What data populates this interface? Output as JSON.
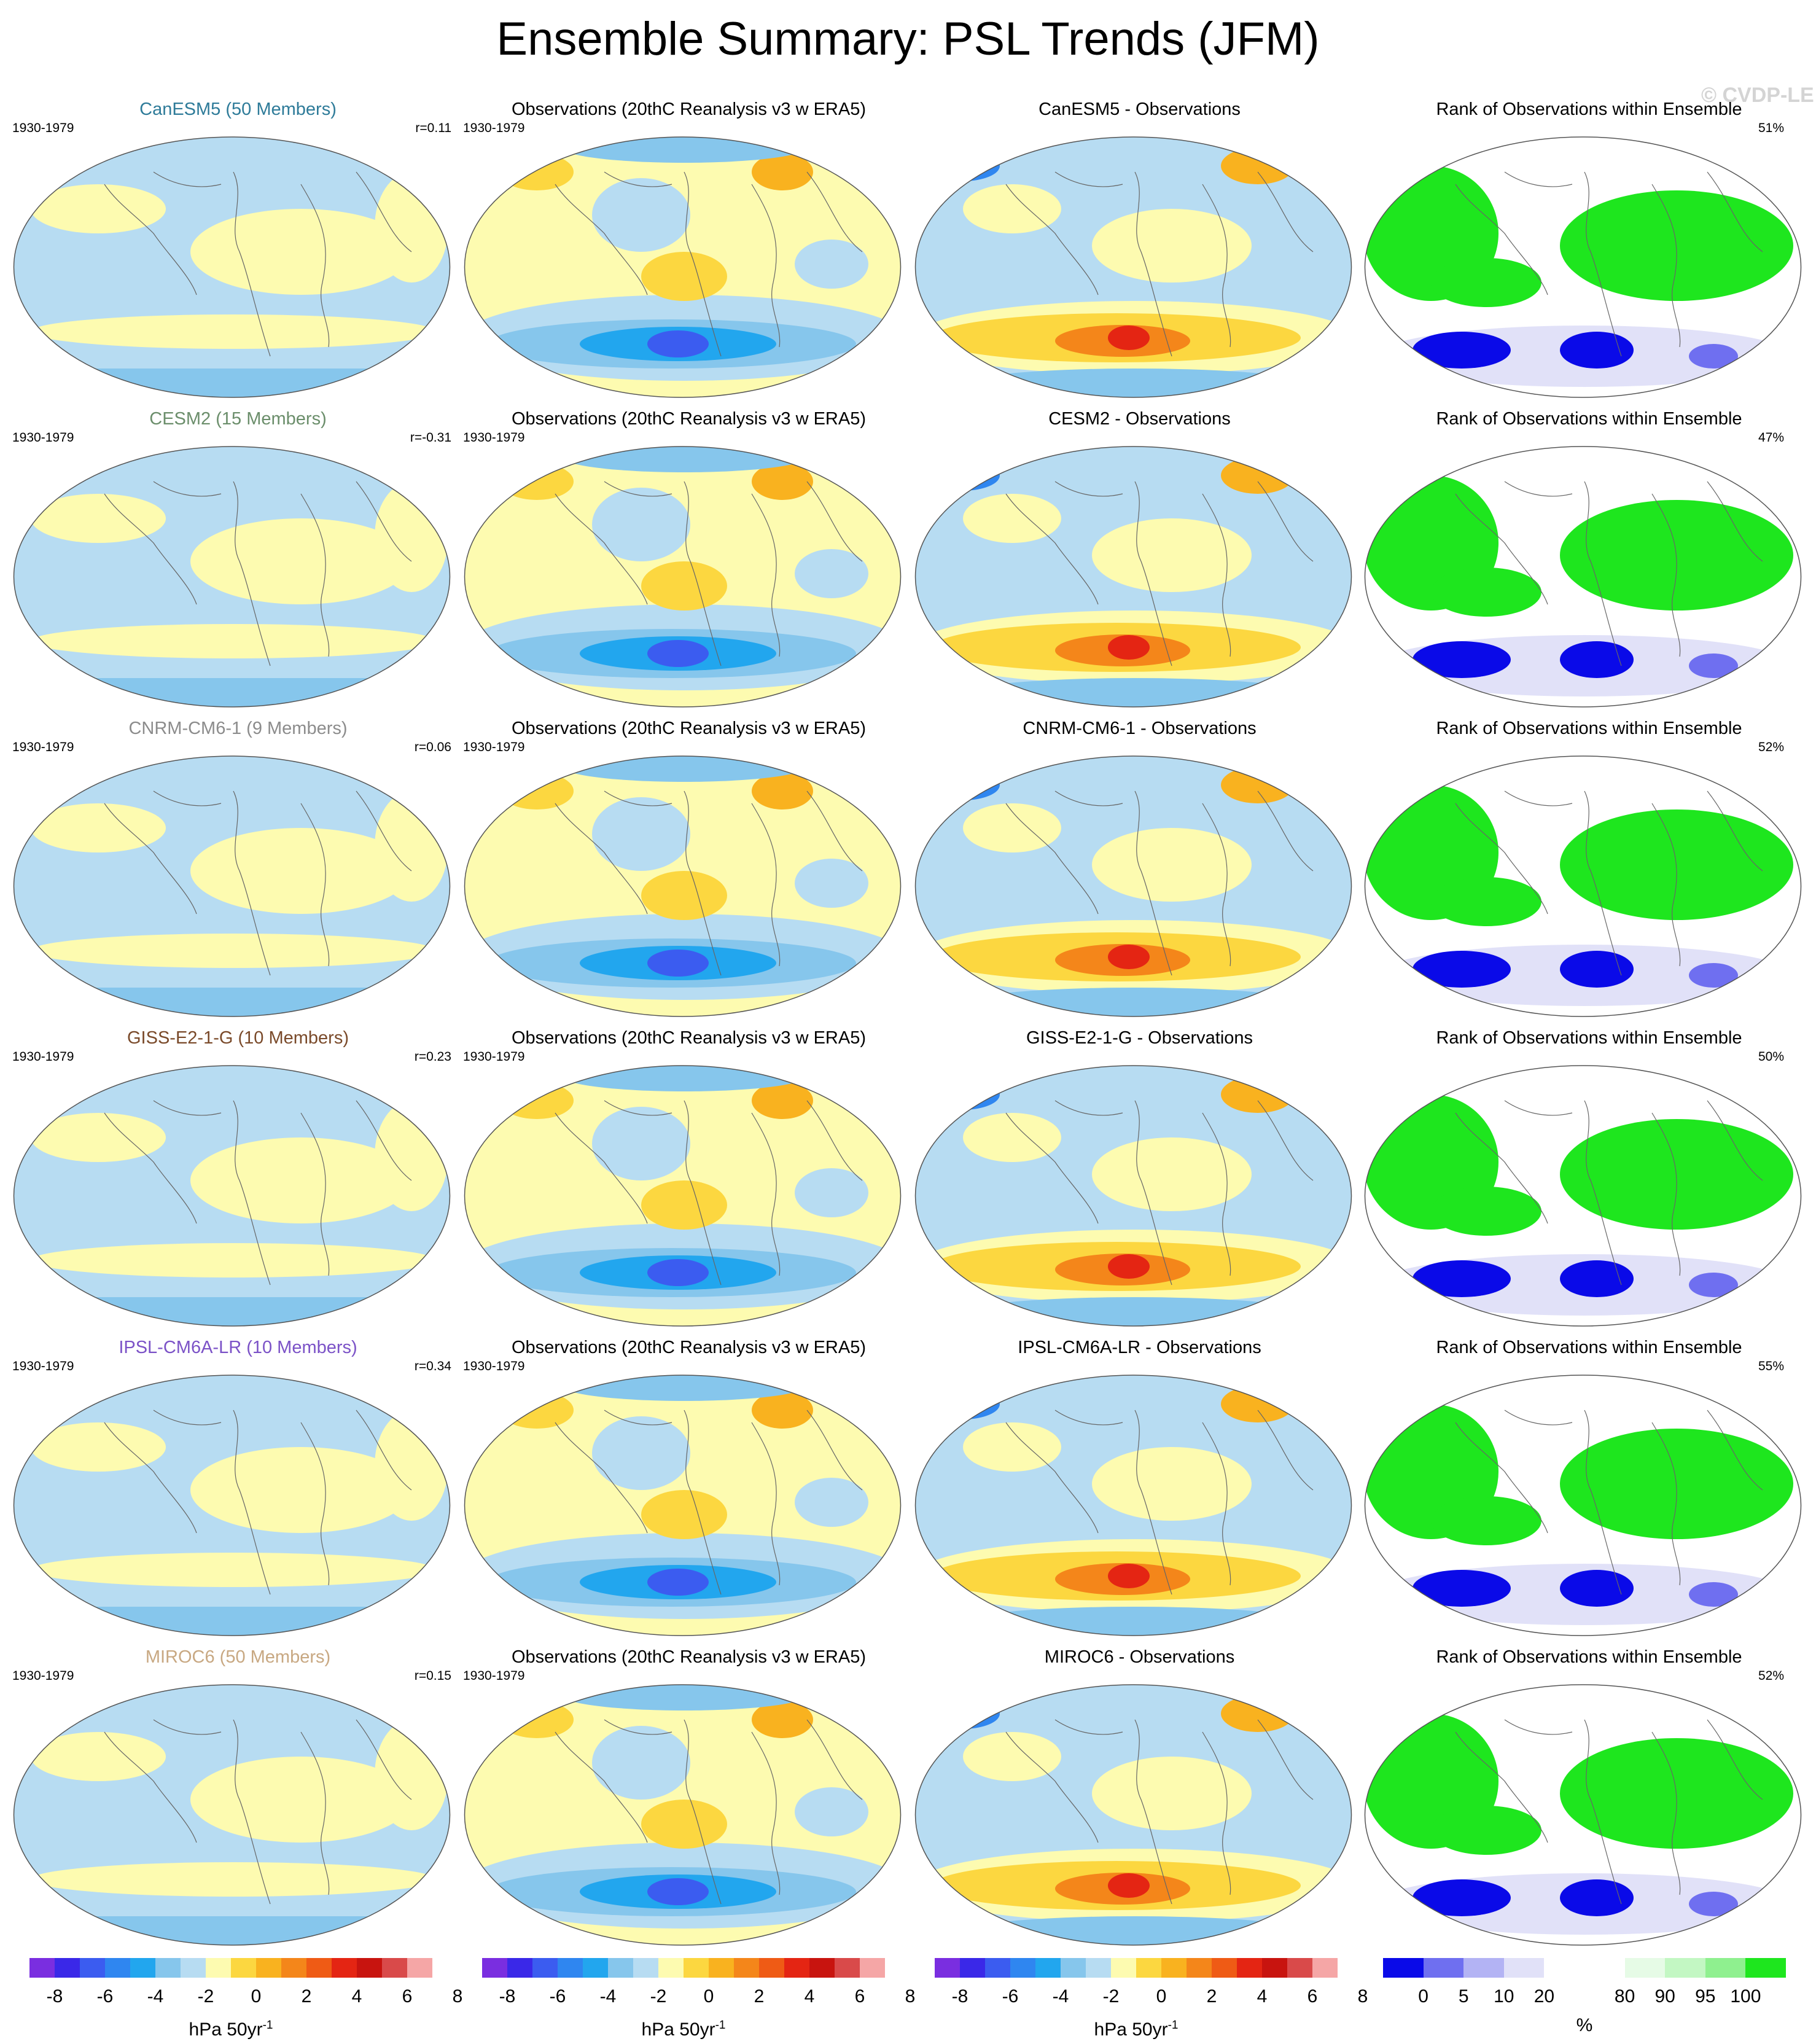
{
  "title": "Ensemble Summary: PSL Trends (JFM)",
  "watermark": "© CVDP-LE",
  "period": "1930-1979",
  "obs_title": "Observations (20thC Reanalysis v3 w ERA5)",
  "rank_title": "Rank of Observations within Ensemble",
  "rows": [
    {
      "model_title": "CanESM5 (50 Members)",
      "model_color": "#2e7b99",
      "r": "r=0.11",
      "diff_title": "CanESM5 - Observations",
      "rank_pct": "51%"
    },
    {
      "model_title": "CESM2 (15 Members)",
      "model_color": "#6b8e6b",
      "r": "r=-0.31",
      "diff_title": "CESM2 - Observations",
      "rank_pct": "47%"
    },
    {
      "model_title": "CNRM-CM6-1 (9 Members)",
      "model_color": "#8c8c8c",
      "r": "r=0.06",
      "diff_title": "CNRM-CM6-1 - Observations",
      "rank_pct": "52%"
    },
    {
      "model_title": "GISS-E2-1-G (10 Members)",
      "model_color": "#7a4a2a",
      "r": "r=0.23",
      "diff_title": "GISS-E2-1-G - Observations",
      "rank_pct": "50%"
    },
    {
      "model_title": "IPSL-CM6A-LR (10 Members)",
      "model_color": "#7b52c7",
      "r": "r=0.34",
      "diff_title": "IPSL-CM6A-LR - Observations",
      "rank_pct": "55%"
    },
    {
      "model_title": "MIROC6 (50 Members)",
      "model_color": "#c8a882",
      "r": "r=0.15",
      "diff_title": "MIROC6 - Observations",
      "rank_pct": "52%"
    }
  ],
  "trend_colorbar": {
    "colors": [
      "#7a2ee0",
      "#3a28e8",
      "#3b5cf0",
      "#2f86f0",
      "#22a6ee",
      "#86c6ec",
      "#b7dcf2",
      "#fdfbb0",
      "#fcd740",
      "#f9b21f",
      "#f4861a",
      "#ef5b15",
      "#e42513",
      "#c8140f",
      "#d94a4a",
      "#f5a6a6"
    ],
    "ticks": [
      "-8",
      "-6",
      "-4",
      "-2",
      "0",
      "2",
      "4",
      "6",
      "8"
    ],
    "unit": "hPa 50yr",
    "unit_sup": "-1"
  },
  "rank_colorbar": {
    "colors": [
      "#0a0ae8",
      "#6f6ff0",
      "#b3b3f4",
      "#e1e1f8",
      "#ffffff",
      "#ffffff",
      "#e6fbe6",
      "#c3f7c3",
      "#8ff08f",
      "#1ee61e"
    ],
    "ticks": [
      "0",
      "5",
      "10",
      "20",
      "80",
      "90",
      "95",
      "100"
    ],
    "unit": "%"
  }
}
